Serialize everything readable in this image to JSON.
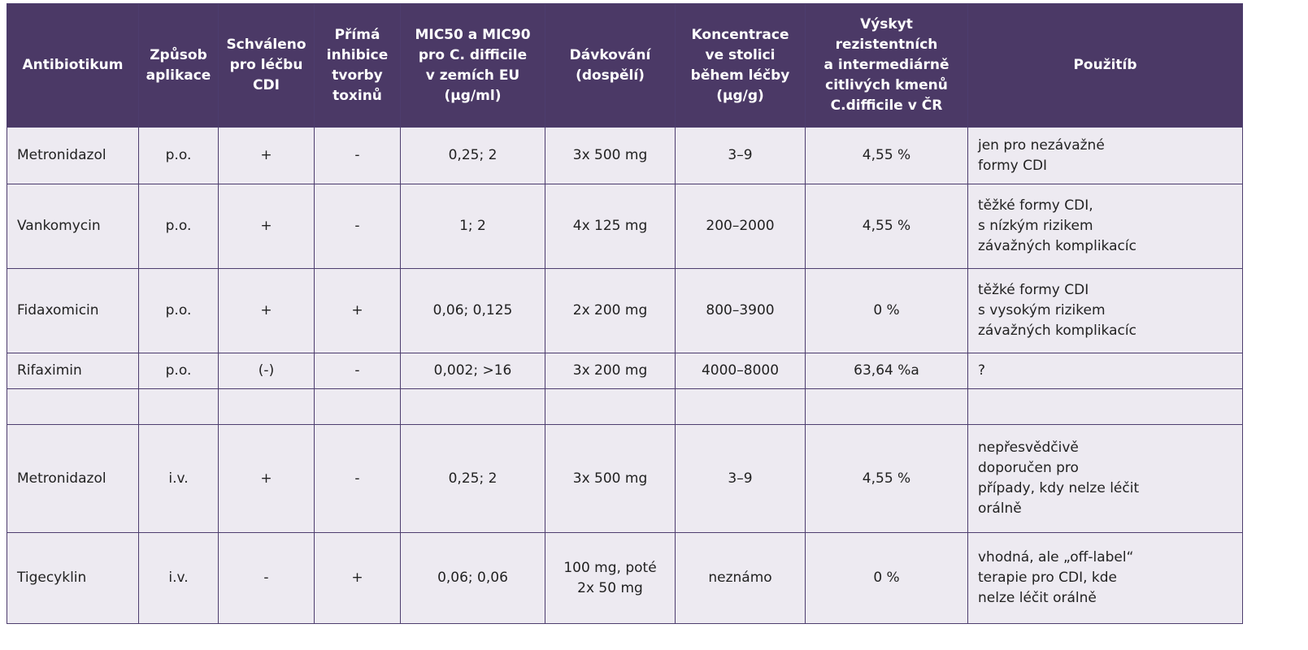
{
  "table": {
    "headers": [
      "Antibiotikum",
      "Způsob\naplikace",
      "Schváleno\npro léčbu\nCDI",
      "Přímá\ninhibice\ntvorby\ntoxinů",
      "MIC50 a MIC90\npro C. difficile\nv zemích EU\n(µg/ml)",
      "Dávkování\n(dospělí)",
      "Koncentrace\nve stolici\nběhem léčby\n(µg/g)",
      "Výskyt\nrezistentních\na intermediárně\ncitlivých kmenů\nC.difficile v ČR",
      "Použitíb"
    ],
    "rows": [
      {
        "antibiotic": "Metronidazol",
        "route": "p.o.",
        "approved": "+",
        "inhibition": "-",
        "mic": "0,25; 2",
        "dosage": "3x 500 mg",
        "concentration": "3–9",
        "resistance": "4,55 %",
        "use": "jen pro nezávažné\nformy CDI"
      },
      {
        "antibiotic": "Vankomycin",
        "route": "p.o.",
        "approved": "+",
        "inhibition": "-",
        "mic": "1; 2",
        "dosage": "4x 125 mg",
        "concentration": "200–2000",
        "resistance": "4,55 %",
        "use": "těžké formy CDI,\ns nízkým rizikem\nzávažných komplikacíc"
      },
      {
        "antibiotic": "Fidaxomicin",
        "route": "p.o.",
        "approved": "+",
        "inhibition": "+",
        "mic": "0,06; 0,125",
        "dosage": "2x 200 mg",
        "concentration": "800–3900",
        "resistance": "0 %",
        "use": "těžké formy CDI\ns vysokým rizikem\nzávažných komplikacíc"
      },
      {
        "antibiotic": "Rifaximin",
        "route": "p.o.",
        "approved": "(-)",
        "inhibition": "-",
        "mic": "0,002; >16",
        "dosage": "3x 200 mg",
        "concentration": "4000–8000",
        "resistance": "63,64 %a",
        "use": "?"
      },
      {
        "antibiotic": "",
        "route": "",
        "approved": "",
        "inhibition": "",
        "mic": "",
        "dosage": "",
        "concentration": "",
        "resistance": "",
        "use": ""
      },
      {
        "antibiotic": "Metronidazol",
        "route": "i.v.",
        "approved": "+",
        "inhibition": "-",
        "mic": "0,25; 2",
        "dosage": "3x 500 mg",
        "concentration": "3–9",
        "resistance": "4,55 %",
        "use": "nepřesvědčivě\ndoporučen pro\npřípady, kdy nelze léčit\norálně"
      },
      {
        "antibiotic": "Tigecyklin",
        "route": "i.v.",
        "approved": "-",
        "inhibition": "+",
        "mic": "0,06; 0,06",
        "dosage": "100 mg, poté\n2x 50 mg",
        "concentration": "neznámo",
        "resistance": "0 %",
        "use": "vhodná, ale „off-label“\nterapie pro CDI, kde\nnelze léčit orálně"
      }
    ]
  },
  "colors": {
    "header_bg": "#4b3966",
    "cell_bg": "#edeaf1",
    "border": "#4d3d6e"
  }
}
